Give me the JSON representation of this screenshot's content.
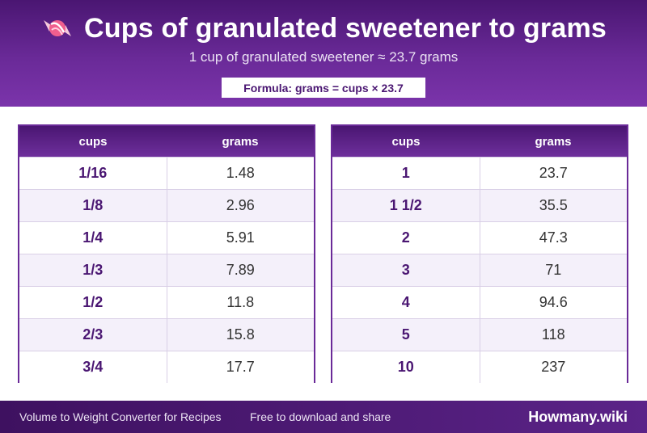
{
  "header": {
    "title": "Cups of granulated sweetener to grams",
    "subtitle": "1 cup of granulated sweetener ≈ 23.7 grams",
    "formula": "Formula: grams = cups × 23.7",
    "icon": "candy-icon"
  },
  "table_left": {
    "columns": [
      "cups",
      "grams"
    ],
    "rows": [
      {
        "cups": "1/16",
        "grams": "1.48"
      },
      {
        "cups": "1/8",
        "grams": "2.96"
      },
      {
        "cups": "1/4",
        "grams": "5.91"
      },
      {
        "cups": "1/3",
        "grams": "7.89"
      },
      {
        "cups": "1/2",
        "grams": "11.8"
      },
      {
        "cups": "2/3",
        "grams": "15.8"
      },
      {
        "cups": "3/4",
        "grams": "17.7"
      }
    ]
  },
  "table_right": {
    "columns": [
      "cups",
      "grams"
    ],
    "rows": [
      {
        "cups": "1",
        "grams": "23.7"
      },
      {
        "cups": "1 1/2",
        "grams": "35.5"
      },
      {
        "cups": "2",
        "grams": "47.3"
      },
      {
        "cups": "3",
        "grams": "71"
      },
      {
        "cups": "4",
        "grams": "94.6"
      },
      {
        "cups": "5",
        "grams": "118"
      },
      {
        "cups": "10",
        "grams": "237"
      }
    ]
  },
  "footer": {
    "left": "Volume to Weight Converter for Recipes",
    "middle": "Free to download and share",
    "brand": "Howmany.wiki"
  },
  "colors": {
    "primary": "#4a1672",
    "accent": "#6a2a98",
    "row_alt": "#f4f0fa"
  }
}
